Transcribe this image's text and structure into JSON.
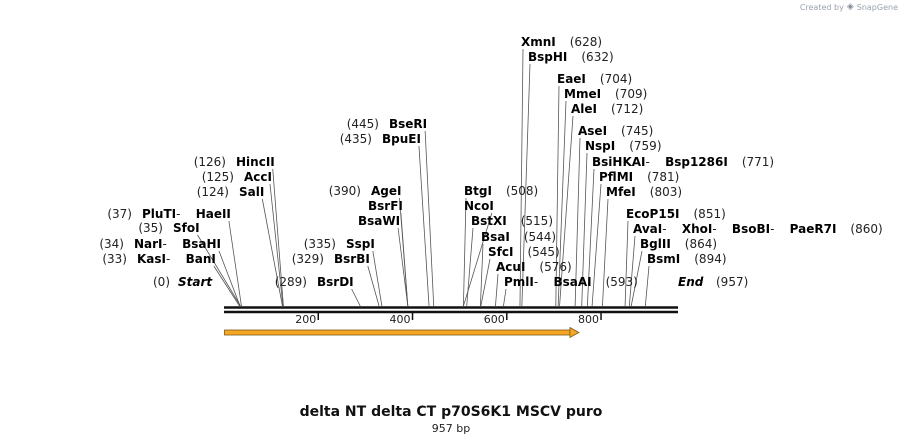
{
  "credit": {
    "text": "Created by",
    "brand": "SnapGene",
    "icon": "snapgene-logo-icon"
  },
  "map": {
    "title": "delta NT delta CT p70S6K1 MSCV puro",
    "length_label": "957 bp",
    "length_bp": 957,
    "start_label": "Start",
    "start_pos": "(0)",
    "end_label": "End",
    "end_pos": "(957)",
    "ticks": [
      "200",
      "400",
      "600",
      "800"
    ],
    "feature": {
      "start_bp": 1,
      "end_bp": 751,
      "strand": "+",
      "color": "#f5a623"
    }
  },
  "sites": [
    {
      "parts": [
        "KasI",
        "BanI"
      ],
      "pos": "(33)",
      "bp": 33
    },
    {
      "parts": [
        "NarI",
        "BsaHI"
      ],
      "pos": "(34)",
      "bp": 34
    },
    {
      "parts": [
        "SfoI"
      ],
      "pos": "(35)",
      "bp": 35
    },
    {
      "parts": [
        "PluTI",
        "HaeII"
      ],
      "pos": "(37)",
      "bp": 37
    },
    {
      "parts": [
        "SalI"
      ],
      "pos": "(124)",
      "bp": 124
    },
    {
      "parts": [
        "AccI"
      ],
      "pos": "(125)",
      "bp": 125
    },
    {
      "parts": [
        "HincII"
      ],
      "pos": "(126)",
      "bp": 126
    },
    {
      "parts": [
        "BsrDI"
      ],
      "pos": "(289)",
      "bp": 289
    },
    {
      "parts": [
        "BsrBI"
      ],
      "pos": "(329)",
      "bp": 329
    },
    {
      "parts": [
        "SspI"
      ],
      "pos": "(335)",
      "bp": 335
    },
    {
      "parts": [
        "BsaWI"
      ],
      "pos": "",
      "bp": 390
    },
    {
      "parts": [
        "BsrFI"
      ],
      "pos": "",
      "bp": 390
    },
    {
      "parts": [
        "AgeI"
      ],
      "pos": "(390)",
      "bp": 390
    },
    {
      "parts": [
        "BpuEI"
      ],
      "pos": "(435)",
      "bp": 435
    },
    {
      "parts": [
        "BseRI"
      ],
      "pos": "(445)",
      "bp": 445
    },
    {
      "parts": [
        "BtgI"
      ],
      "pos": "(508)",
      "bp": 508
    },
    {
      "parts": [
        "NcoI"
      ],
      "pos": "",
      "bp": 508
    },
    {
      "parts": [
        "BstXI"
      ],
      "pos": "(515)",
      "bp": 515
    },
    {
      "parts": [
        "BsaI"
      ],
      "pos": "(544)",
      "bp": 544
    },
    {
      "parts": [
        "SfcI"
      ],
      "pos": "(545)",
      "bp": 545
    },
    {
      "parts": [
        "AcuI"
      ],
      "pos": "(576)",
      "bp": 576
    },
    {
      "parts": [
        "PmlI",
        "BsaAI"
      ],
      "pos": "(593)",
      "bp": 593
    },
    {
      "parts": [
        "XmnI"
      ],
      "pos": "(628)",
      "bp": 628
    },
    {
      "parts": [
        "BspHI"
      ],
      "pos": "(632)",
      "bp": 632
    },
    {
      "parts": [
        "EaeI"
      ],
      "pos": "(704)",
      "bp": 704
    },
    {
      "parts": [
        "MmeI"
      ],
      "pos": "(709)",
      "bp": 709
    },
    {
      "parts": [
        "AleI"
      ],
      "pos": "(712)",
      "bp": 712
    },
    {
      "parts": [
        "AseI"
      ],
      "pos": "(745)",
      "bp": 745
    },
    {
      "parts": [
        "NspI"
      ],
      "pos": "(759)",
      "bp": 759
    },
    {
      "parts": [
        "BsiHKAI",
        "Bsp1286I"
      ],
      "pos": "(771)",
      "bp": 771
    },
    {
      "parts": [
        "PflMI"
      ],
      "pos": "(781)",
      "bp": 781
    },
    {
      "parts": [
        "MfeI"
      ],
      "pos": "(803)",
      "bp": 803
    },
    {
      "parts": [
        "EcoP15I"
      ],
      "pos": "(851)",
      "bp": 851
    },
    {
      "parts": [
        "AvaI",
        "XhoI",
        "BsoBI",
        "PaeR7I"
      ],
      "pos": "(860)",
      "bp": 860
    },
    {
      "parts": [
        "BglII"
      ],
      "pos": "(864)",
      "bp": 864
    },
    {
      "parts": [
        "BsmI"
      ],
      "pos": "(894)",
      "bp": 894
    }
  ]
}
